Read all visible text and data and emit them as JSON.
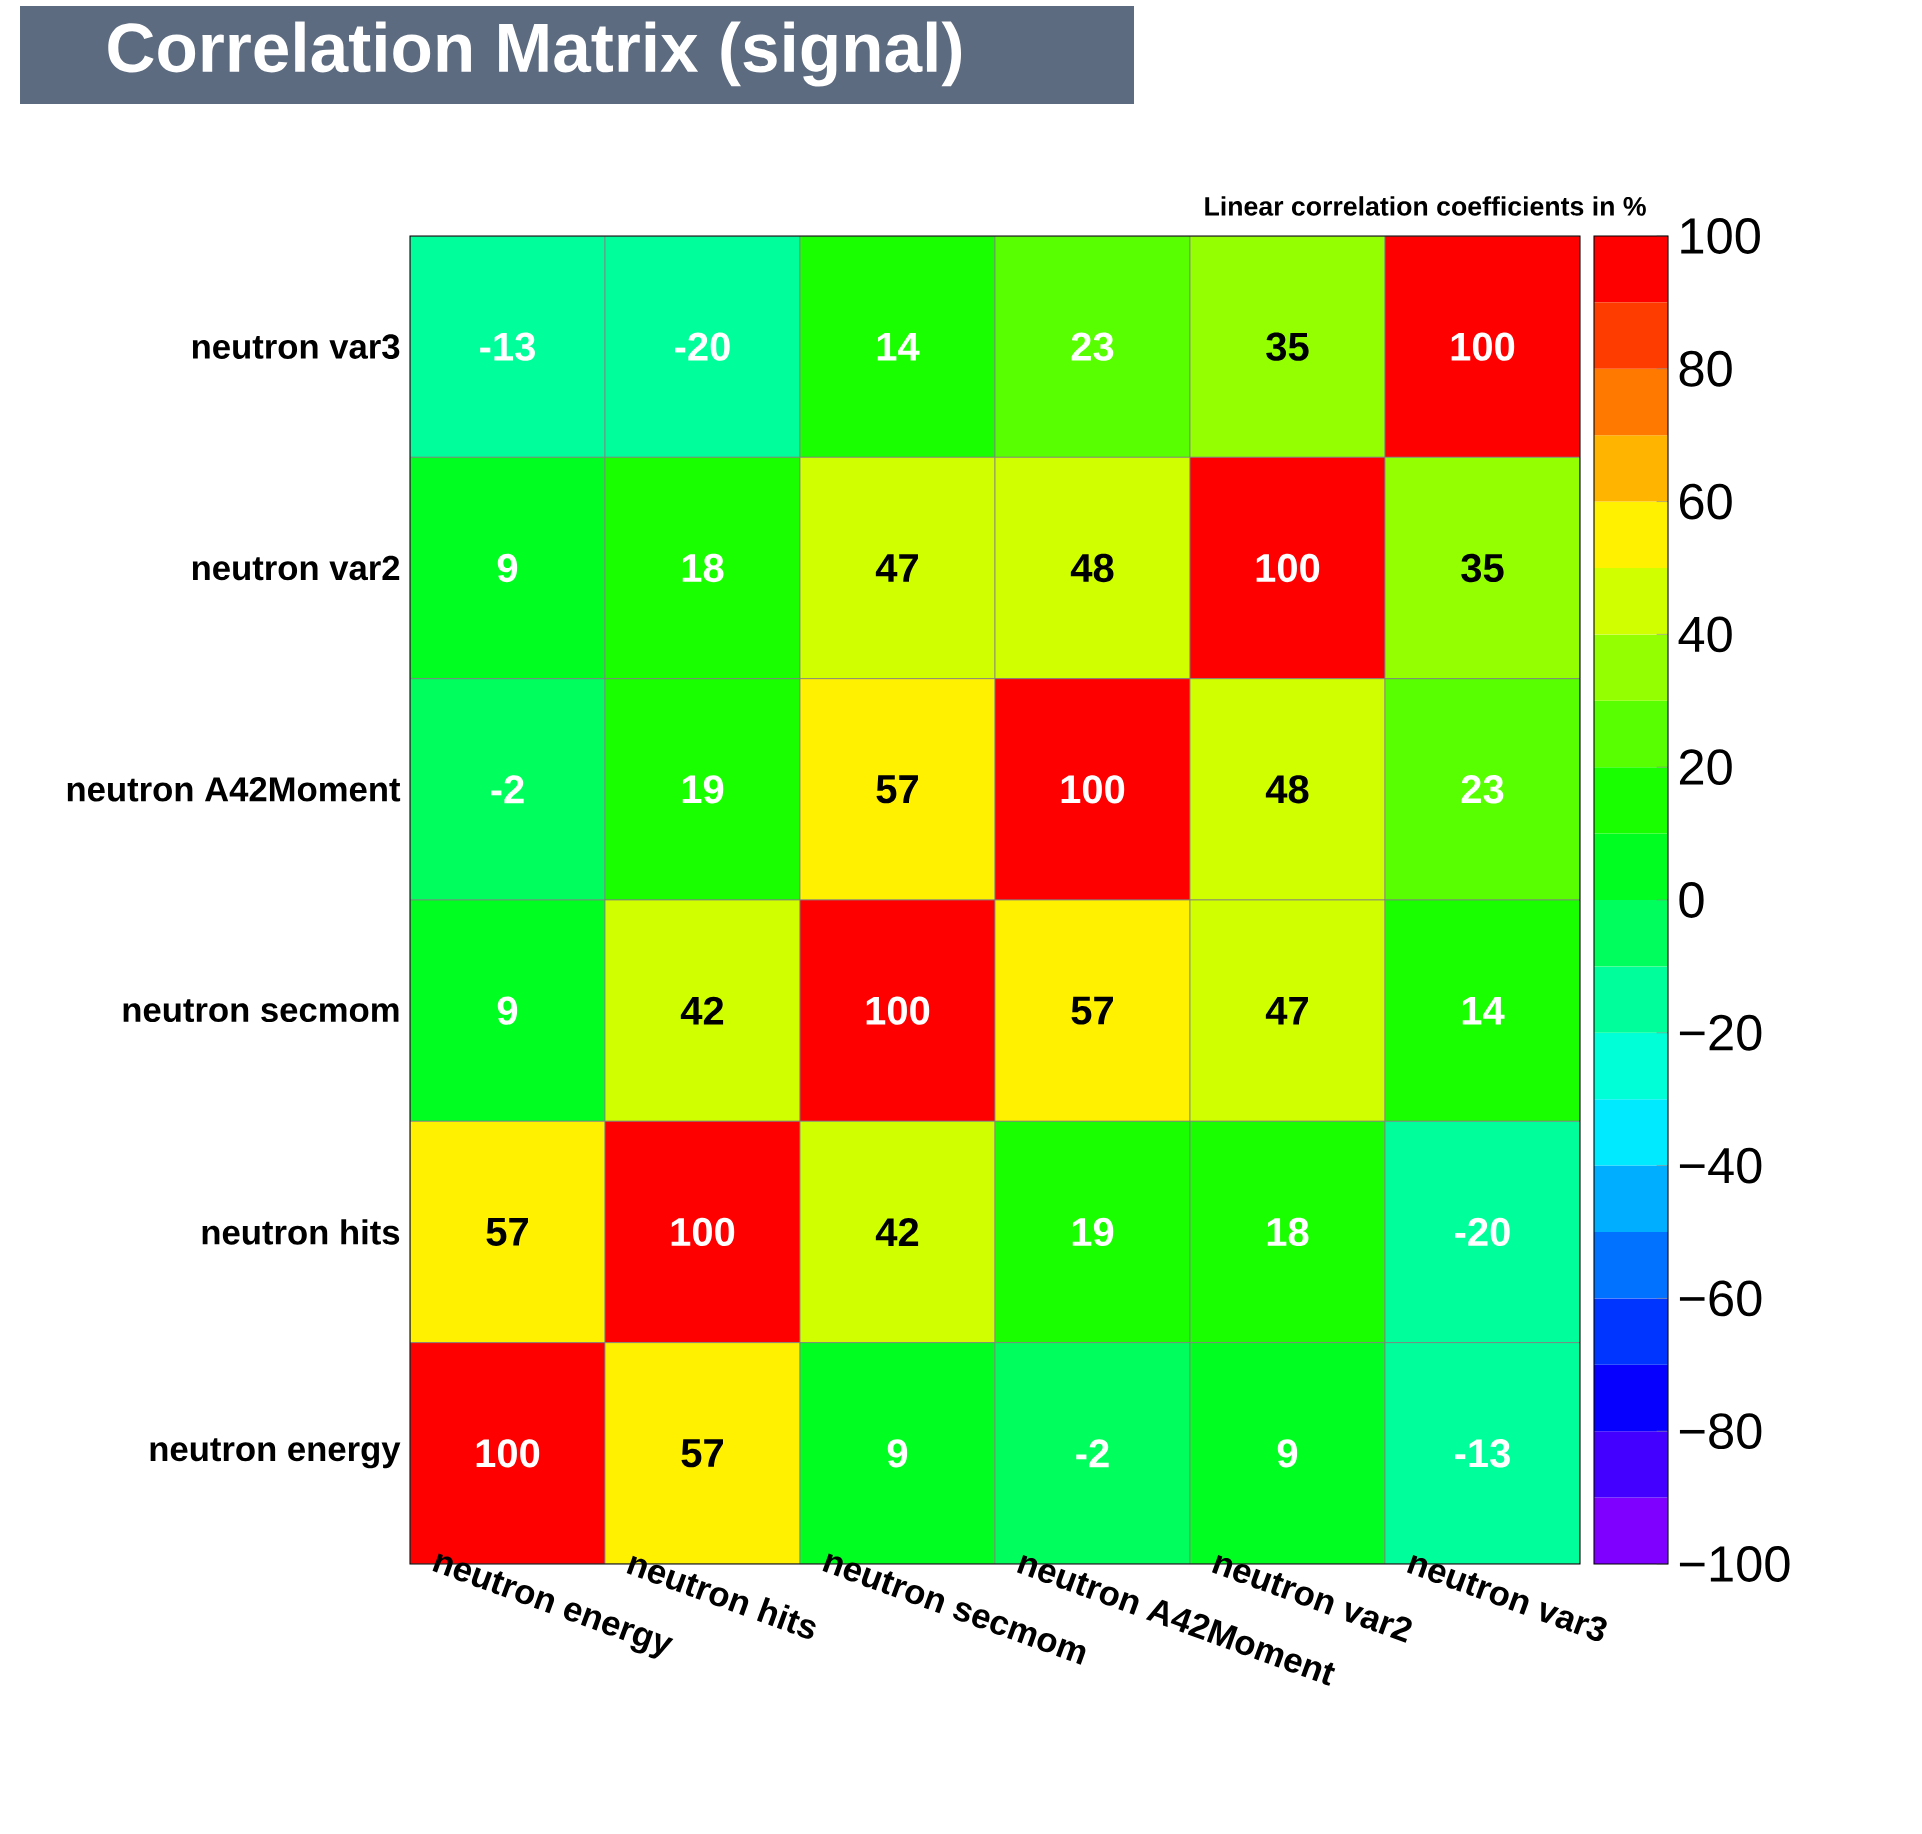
{
  "chart_data": {
    "type": "heatmap",
    "title": "Correlation Matrix (signal)",
    "clabel": "Linear correlation coefficients in %",
    "categories": [
      "neutron energy",
      "neutron hits",
      "neutron secmom",
      "neutron A42Moment",
      "neutron var2",
      "neutron var3"
    ],
    "y_categories": [
      "neutron var3",
      "neutron var2",
      "neutron A42Moment",
      "neutron secmom",
      "neutron hits",
      "neutron energy"
    ],
    "cells": [
      [
        -13,
        -20,
        14,
        23,
        35,
        100
      ],
      [
        9,
        18,
        47,
        48,
        100,
        35
      ],
      [
        -2,
        19,
        57,
        100,
        48,
        23
      ],
      [
        9,
        42,
        100,
        57,
        47,
        14
      ],
      [
        57,
        100,
        42,
        19,
        18,
        -20
      ],
      [
        100,
        57,
        9,
        -2,
        9,
        -13
      ]
    ],
    "clim": [
      -100,
      100
    ],
    "cticks": [
      {
        "value": -100,
        "label": "−100"
      },
      {
        "value": -80,
        "label": "−80"
      },
      {
        "value": -60,
        "label": "−60"
      },
      {
        "value": -40,
        "label": "−40"
      },
      {
        "value": -20,
        "label": "−20"
      },
      0,
      20,
      40,
      60,
      80,
      100
    ],
    "data_labels": true
  }
}
